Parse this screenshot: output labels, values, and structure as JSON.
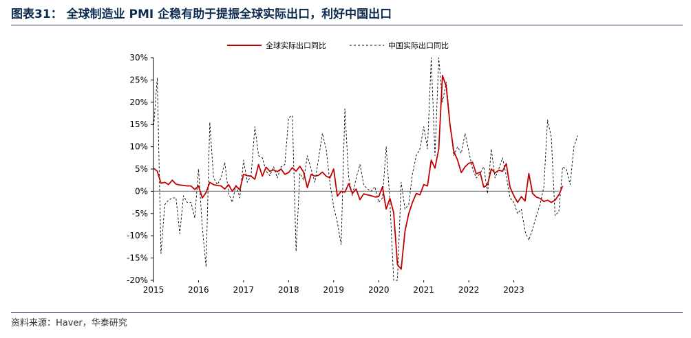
{
  "header": {
    "title": "图表31：  全球制造业 PMI 企稳有助于提振全球实际出口，利好中国出口"
  },
  "footer": {
    "source": "资料来源：Haver，华泰研究"
  },
  "colors": {
    "global_line": "#c00000",
    "china_line": "#000000",
    "title": "#0d2a4f",
    "rule": "#1f3a5f"
  },
  "chart_data": {
    "type": "line",
    "title": "",
    "xlabel": "",
    "ylabel": "",
    "x_start": "2015-01",
    "x_end": "2023-12",
    "frequency": "monthly",
    "ylim": [
      -20,
      30
    ],
    "yticks": [
      -20,
      -15,
      -10,
      -5,
      0,
      5,
      10,
      15,
      20,
      25,
      30
    ],
    "ytick_labels": [
      "-20%",
      "-15%",
      "-10%",
      "-5%",
      "0%",
      "5%",
      "10%",
      "15%",
      "20%",
      "25%",
      "30%"
    ],
    "xtick_labels": [
      "2015",
      "2016",
      "2017",
      "2018",
      "2019",
      "2020",
      "2021",
      "2022",
      "2023"
    ],
    "grid": false,
    "legend_position": "top-center",
    "series": [
      {
        "name": "全球实际出口同比",
        "style": "solid",
        "color": "#c00000",
        "values": [
          5.2,
          4.5,
          1.8,
          2.0,
          1.5,
          2.5,
          1.6,
          1.4,
          1.3,
          1.2,
          1.2,
          0.4,
          1.2,
          -1.5,
          -0.3,
          2.0,
          1.5,
          1.3,
          1.2,
          0.5,
          1.5,
          0.0,
          1.2,
          0.3,
          3.8,
          3.5,
          3.4,
          2.7,
          6.0,
          3.4,
          5.4,
          4.5,
          4.8,
          4.4,
          5.0,
          3.8,
          4.2,
          5.3,
          4.5,
          5.6,
          4.3,
          0.8,
          3.8,
          3.4,
          3.6,
          4.3,
          3.4,
          3.0,
          5.0,
          -1.1,
          0.0,
          -0.2,
          1.7,
          -0.5,
          0.5,
          -1.9,
          -0.6,
          -0.8,
          -1.0,
          -1.3,
          -1.2,
          1.0,
          -4.0,
          -1.6,
          -4.8,
          -16.5,
          -17.5,
          -9.0,
          -5.0,
          -2.5,
          -0.5,
          -0.8,
          1.5,
          1.2,
          7.0,
          5.2,
          9.5,
          26.0,
          23.5,
          15.0,
          9.0,
          7.0,
          4.2,
          5.5,
          6.3,
          6.5,
          3.9,
          4.3,
          0.9,
          1.5,
          5.0,
          4.1,
          4.7,
          4.5,
          6.2,
          0.9,
          -1.0,
          -2.5,
          -1.2,
          -2.2,
          4.0,
          -0.5,
          -1.3,
          -1.6,
          -2.3,
          -2.0,
          -2.5,
          -2.0
        ],
        "extra_points": [
          -0.8,
          1.2
        ]
      },
      {
        "name": "中国实际出口同比",
        "style": "dashed",
        "color": "#000000",
        "values": [
          14.0,
          25.5,
          -14.0,
          -3.0,
          -2.0,
          -1.5,
          -1.5,
          -9.5,
          -1.0,
          -2.5,
          -2.5,
          -6.0,
          5.0,
          -8.0,
          -17.0,
          15.5,
          3.0,
          1.5,
          3.0,
          6.5,
          -0.5,
          -2.5,
          1.5,
          -1.5,
          7.0,
          2.0,
          3.5,
          14.5,
          8.0,
          7.5,
          4.5,
          3.5,
          5.5,
          3.0,
          5.5,
          6.0,
          16.5,
          17.0,
          -13.5,
          4.0,
          2.5,
          8.0,
          5.0,
          2.0,
          7.5,
          13.0,
          9.5,
          2.0,
          -3.5,
          -7.0,
          -12.0,
          18.5,
          3.0,
          -1.0,
          3.0,
          6.0,
          1.5,
          0.5,
          0.0,
          1.0,
          -2.5,
          -1.5,
          10.0,
          -2.5,
          -20.0,
          -20.0,
          2.0,
          -4.0,
          -3.0,
          4.0,
          8.0,
          9.5,
          14.5,
          9.5,
          31.0,
          8.0,
          31.0,
          20.0,
          24.5,
          15.5,
          8.0,
          10.0,
          8.5,
          13.0,
          9.0,
          5.0,
          3.0,
          4.0,
          5.5,
          -0.5,
          9.5,
          3.0,
          5.0,
          7.5,
          3.5,
          -1.5,
          -2.5,
          -5.0,
          -4.0,
          -9.0,
          -11.0,
          -8.5,
          -5.5,
          -3.0,
          1.0,
          16.0,
          12.0,
          -5.5
        ],
        "extra_points": [
          -4.5,
          5.5,
          5.0,
          1.5,
          10.0,
          12.5
        ]
      }
    ]
  }
}
